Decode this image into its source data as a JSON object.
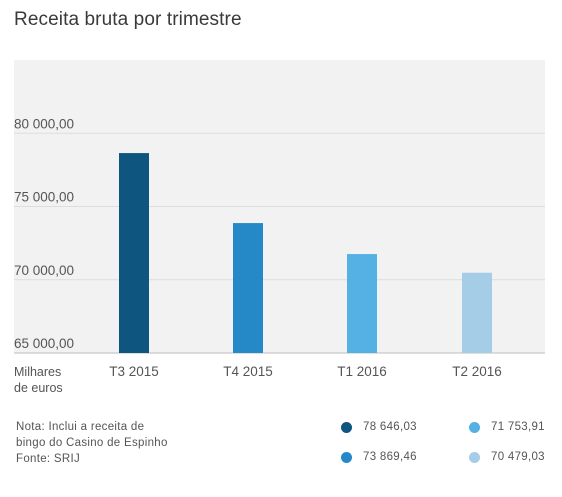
{
  "title": "Receita bruta por trimestre",
  "unit_label": [
    "Milhares",
    "de euros"
  ],
  "note_lines": [
    "Nota: Inclui a receita de",
    "bingo do Casino de Espinho",
    "Fonte: SRIJ"
  ],
  "legend": [
    {
      "label": "78 646,03",
      "color": "#0e5580"
    },
    {
      "label": "73 869,46",
      "color": "#2689c7"
    },
    {
      "label": "71 753,91",
      "color": "#55b0e3"
    },
    {
      "label": "70 479,03",
      "color": "#a6cde7"
    }
  ],
  "chart_data": {
    "type": "bar",
    "categories": [
      "T3 2015",
      "T4 2015",
      "T1 2016",
      "T2 2016"
    ],
    "values": [
      78646.03,
      73869.46,
      71753.91,
      70479.03
    ],
    "colors": [
      "#0e5580",
      "#2689c7",
      "#55b0e3",
      "#a6cde7"
    ],
    "ylim": [
      65000,
      85000
    ],
    "yticks": [
      65000,
      70000,
      75000,
      80000
    ],
    "ytick_labels": [
      "65 000,00",
      "70 000,00",
      "75 000,00",
      "80 000,00"
    ],
    "grid": true,
    "legend_position": "bottom-right"
  }
}
